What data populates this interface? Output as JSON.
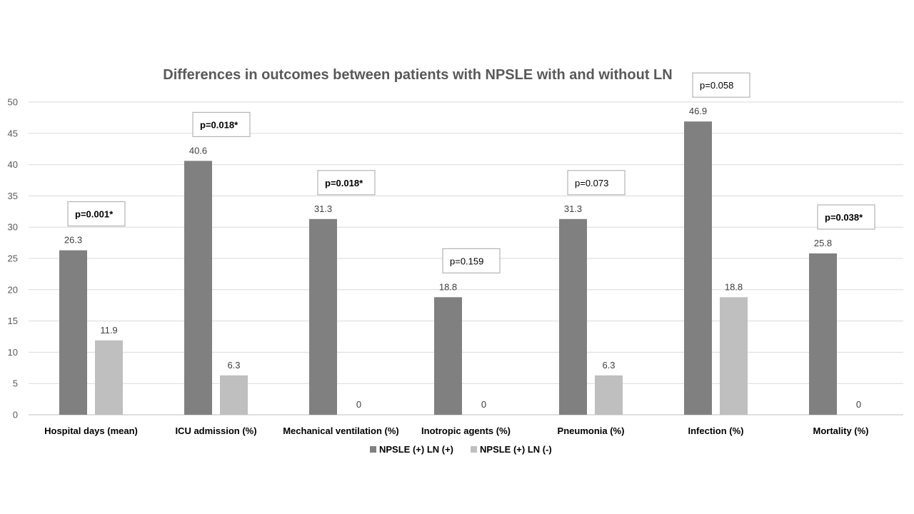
{
  "chart_data": {
    "type": "bar",
    "title": "Differences in outcomes between patients with NPSLE with and without LN",
    "xlabel": "",
    "ylabel": "",
    "ylim": [
      0,
      50
    ],
    "yticks": [
      0,
      5,
      10,
      15,
      20,
      25,
      30,
      35,
      40,
      45,
      50
    ],
    "grid": true,
    "legend_position": "bottom",
    "categories": [
      "Hospital days (mean)",
      "ICU  admission (%)",
      "Mechanical ventilation (%)",
      "Inotropic agents (%)",
      "Pneumonia (%)",
      "Infection (%)",
      "Mortality (%)"
    ],
    "series": [
      {
        "name": "NPSLE (+) LN (+)",
        "color": "#808080",
        "values": [
          26.3,
          40.6,
          31.3,
          18.8,
          31.3,
          46.9,
          25.8
        ]
      },
      {
        "name": "NPSLE (+) LN (-)",
        "color": "#bfbfbf",
        "values": [
          11.9,
          6.3,
          0,
          0,
          6.3,
          18.8,
          0
        ]
      }
    ],
    "annotations": [
      {
        "category": "Hospital days (mean)",
        "text": "p=0.001*",
        "bold": true
      },
      {
        "category": "ICU  admission (%)",
        "text": "p=0.018*",
        "bold": true
      },
      {
        "category": "Mechanical ventilation (%)",
        "text": "p=0.018*",
        "bold": true
      },
      {
        "category": "Inotropic agents (%)",
        "text": "p=0.159",
        "bold": false
      },
      {
        "category": "Pneumonia (%)",
        "text": "p=0.073",
        "bold": false
      },
      {
        "category": "Infection (%)",
        "text": "p=0.058",
        "bold": false
      },
      {
        "category": "Mortality (%)",
        "text": "p=0.038*",
        "bold": true
      }
    ]
  }
}
